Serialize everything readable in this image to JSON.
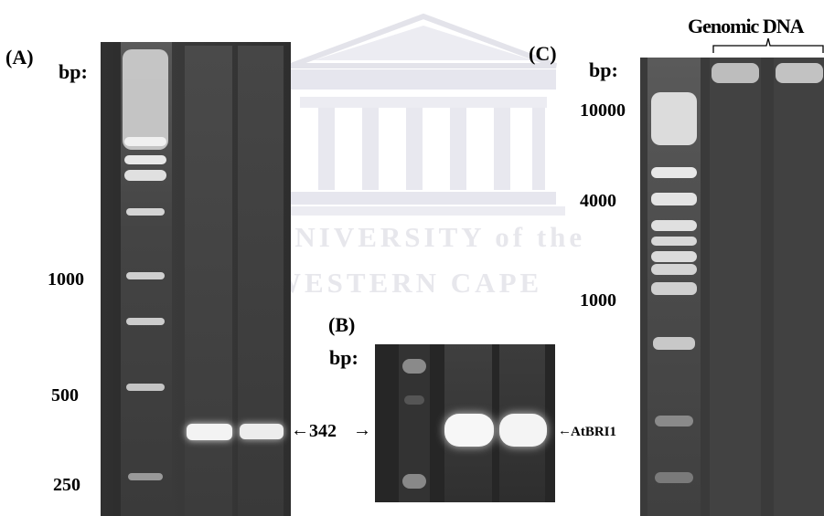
{
  "watermark": {
    "line1": "UNIVERSITY of the",
    "line2": "WESTERN CAPE"
  },
  "panel_a": {
    "tag": "(A)",
    "bp_label": "bp:",
    "markers": [
      "1000",
      "500",
      "250"
    ],
    "band_label": "342"
  },
  "panel_b": {
    "tag": "(B)",
    "bp_label": "bp:",
    "band_label": "AtBRI1"
  },
  "panel_c": {
    "tag": "(C)",
    "bp_label": "bp:",
    "header": "Genomic DNA",
    "markers": [
      "10000",
      "4000",
      "1000"
    ]
  },
  "arrows": {
    "left": "←",
    "right": "→"
  },
  "colors": {
    "gel_dark": "#222222",
    "band_bright": "#f4f4f4",
    "watermark": "#e6e6ee"
  }
}
